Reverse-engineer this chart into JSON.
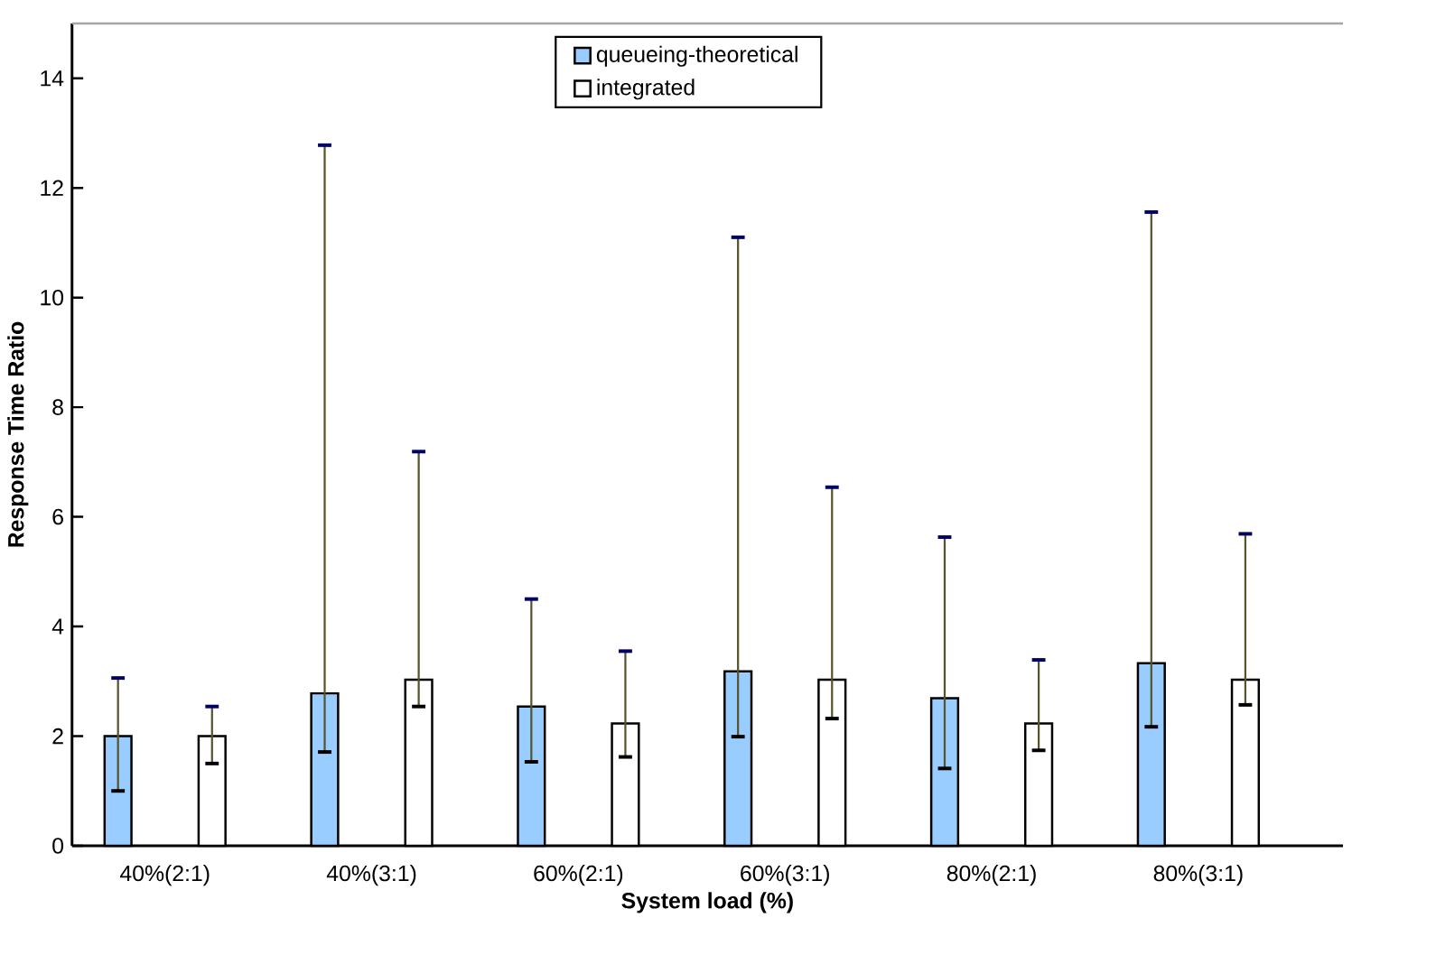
{
  "chart_data": {
    "type": "bar",
    "xlabel": "System load (%)",
    "ylabel": "Response Time Ratio",
    "categories": [
      "40%(2:1)",
      "40%(3:1)",
      "60%(2:1)",
      "60%(3:1)",
      "80%(2:1)",
      "80%(3:1)"
    ],
    "series": [
      {
        "name": "queueing-theoretical",
        "color": "#99ccff",
        "values": [
          2.0,
          2.78,
          2.54,
          3.18,
          2.69,
          3.33
        ],
        "errors": [
          [
            1.0,
            3.06
          ],
          [
            1.71,
            12.78
          ],
          [
            1.53,
            4.5
          ],
          [
            1.99,
            11.1
          ],
          [
            1.41,
            5.63
          ],
          [
            2.17,
            11.56
          ]
        ]
      },
      {
        "name": "integrated",
        "color": "#ffffff",
        "values": [
          2.0,
          3.03,
          2.23,
          3.03,
          2.23,
          3.03
        ],
        "errors": [
          [
            1.5,
            2.54
          ],
          [
            2.54,
            7.19
          ],
          [
            1.62,
            3.55
          ],
          [
            2.32,
            6.54
          ],
          [
            1.74,
            3.39
          ],
          [
            2.57,
            5.69
          ]
        ]
      }
    ],
    "ylim": [
      0,
      15
    ],
    "yticks": [
      0,
      2,
      4,
      6,
      8,
      10,
      12,
      14
    ],
    "grid": false,
    "legend": "top"
  }
}
